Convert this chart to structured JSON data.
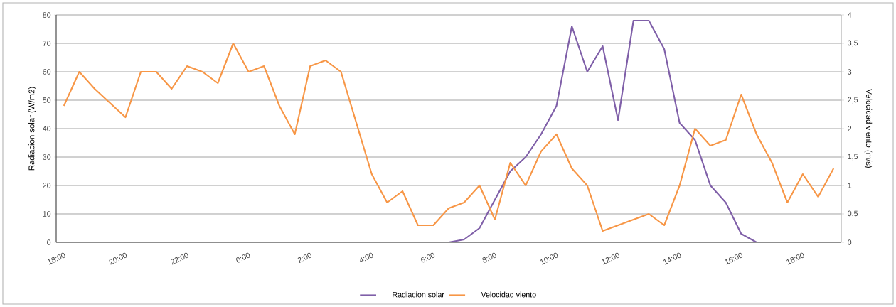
{
  "chart_data": {
    "type": "line",
    "categories": [
      "18:00",
      null,
      null,
      null,
      "20:00",
      null,
      null,
      null,
      "22:00",
      null,
      null,
      null,
      "0:00",
      null,
      null,
      null,
      "2:00",
      null,
      null,
      null,
      "4:00",
      null,
      null,
      null,
      "6:00",
      null,
      null,
      null,
      "8:00",
      null,
      null,
      null,
      "10:00",
      null,
      null,
      null,
      "12:00",
      null,
      null,
      null,
      "14:00",
      null,
      null,
      null,
      "16:00",
      null,
      null,
      null,
      "18:00",
      null,
      null
    ],
    "series": [
      {
        "name": "Radiacion solar",
        "color": "#7f5fa8",
        "values": [
          0,
          0,
          0,
          0,
          0,
          0,
          0,
          0,
          0,
          0,
          0,
          0,
          0,
          0,
          0,
          0,
          0,
          0,
          0,
          0,
          0,
          0,
          0,
          0,
          0,
          0,
          1,
          5,
          15,
          25,
          30,
          38,
          48,
          76,
          60,
          69,
          43,
          78,
          78,
          68,
          42,
          36,
          20,
          14,
          3,
          0,
          0,
          0,
          0,
          0,
          0
        ]
      },
      {
        "name": "Velocidad viento",
        "color": "#f79646",
        "axis": "y2",
        "values": [
          2.4,
          3.0,
          2.7,
          2.45,
          2.2,
          3.0,
          3.0,
          2.7,
          3.1,
          3.0,
          2.8,
          3.5,
          3.0,
          3.1,
          2.4,
          1.9,
          3.1,
          3.2,
          3.0,
          2.1,
          1.2,
          0.7,
          0.9,
          0.3,
          0.3,
          0.6,
          0.7,
          1.0,
          0.4,
          1.4,
          1.0,
          1.6,
          1.9,
          1.3,
          1.0,
          0.2,
          0.3,
          0.4,
          0.5,
          0.3,
          1.0,
          2.0,
          1.7,
          1.8,
          2.6,
          1.9,
          1.4,
          0.7,
          1.2,
          0.8,
          1.3
        ]
      }
    ],
    "ylim": [
      0,
      80
    ],
    "yticks": [
      0,
      10,
      20,
      30,
      40,
      50,
      60,
      70,
      80
    ],
    "y2lim": [
      0,
      4
    ],
    "y2ticks": [
      0,
      {
        "value": 0.5,
        "label": "0,5"
      },
      1,
      {
        "value": 1.5,
        "label": "1,5"
      },
      2,
      {
        "value": 2.5,
        "label": "2,5"
      },
      3,
      {
        "value": 3.5,
        "label": "3,5"
      },
      4
    ],
    "ylabel": "Radiacion solar (W/m2)",
    "y2label": "Velocidad viento (m/s)",
    "grid": "y",
    "legend": "bottom",
    "marker": "none",
    "line_style": "solid"
  }
}
